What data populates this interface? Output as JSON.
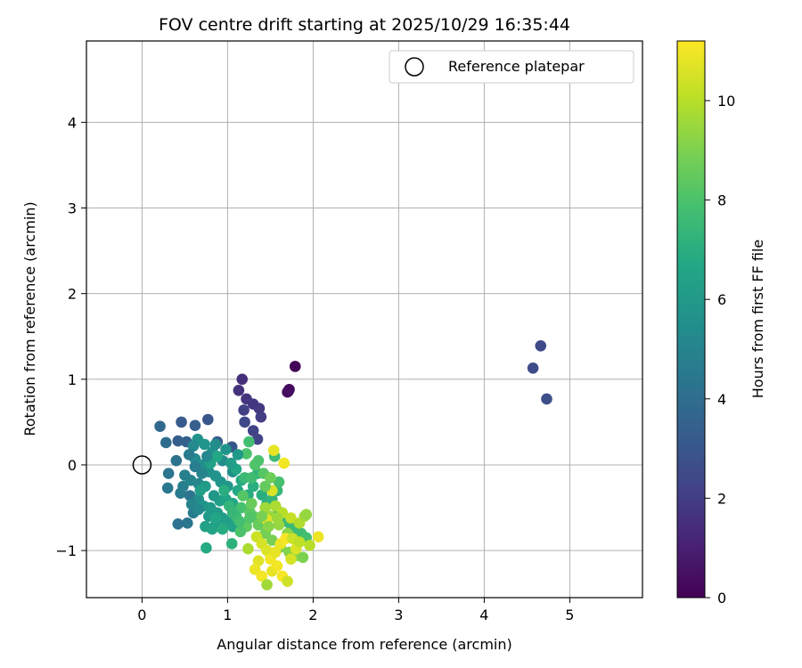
{
  "chart_data": {
    "type": "scatter",
    "title": "FOV centre drift starting at 2025/10/29 16:35:44",
    "xlabel": "Angular distance from reference (arcmin)",
    "ylabel": "Rotation from reference (arcmin)",
    "xlim": [
      -0.65,
      5.85
    ],
    "ylim": [
      -1.55,
      4.95
    ],
    "xticks": [
      0,
      1,
      2,
      3,
      4,
      5
    ],
    "yticks": [
      -1,
      0,
      1,
      2,
      3,
      4
    ],
    "xtick_labels": [
      "0",
      "1",
      "2",
      "3",
      "4",
      "5"
    ],
    "ytick_labels": [
      "−1",
      "0",
      "1",
      "2",
      "3",
      "4"
    ],
    "grid": true,
    "legend": {
      "position": "top-right",
      "entries": [
        "Reference platepar"
      ]
    },
    "reference_point": {
      "x": 0,
      "y": 0,
      "label": "Reference platepar"
    },
    "colorbar": {
      "label": "Hours from first FF file",
      "range": [
        0,
        11.2
      ],
      "ticks": [
        0,
        2,
        4,
        6,
        8,
        10
      ],
      "tick_labels": [
        "0",
        "2",
        "4",
        "6",
        "8",
        "10"
      ],
      "colormap": "viridis"
    },
    "points": [
      [
        1.79,
        1.15,
        0.1
      ],
      [
        1.71,
        0.86,
        0.2
      ],
      [
        1.72,
        0.88,
        0.3
      ],
      [
        1.7,
        0.85,
        0.4
      ],
      [
        1.17,
        1.0,
        1.5
      ],
      [
        1.13,
        0.87,
        1.6
      ],
      [
        1.22,
        0.77,
        1.7
      ],
      [
        1.3,
        0.71,
        1.8
      ],
      [
        1.37,
        0.66,
        1.9
      ],
      [
        1.39,
        0.56,
        2.0
      ],
      [
        1.19,
        0.64,
        2.1
      ],
      [
        1.3,
        0.4,
        2.2
      ],
      [
        1.35,
        0.3,
        2.3
      ],
      [
        1.2,
        0.5,
        2.4
      ],
      [
        4.66,
        1.39,
        2.5
      ],
      [
        4.57,
        1.13,
        2.6
      ],
      [
        4.73,
        0.77,
        2.7
      ],
      [
        0.77,
        0.53,
        3.0
      ],
      [
        0.46,
        0.5,
        3.2
      ],
      [
        0.62,
        0.46,
        3.4
      ],
      [
        0.42,
        0.28,
        3.3
      ],
      [
        0.52,
        0.27,
        3.5
      ],
      [
        0.88,
        0.27,
        3.2
      ],
      [
        1.05,
        0.21,
        3.0
      ],
      [
        0.21,
        0.45,
        3.8
      ],
      [
        0.28,
        0.26,
        4.0
      ],
      [
        0.4,
        0.05,
        4.2
      ],
      [
        0.31,
        -0.1,
        4.4
      ],
      [
        0.3,
        -0.27,
        4.5
      ],
      [
        0.45,
        -0.33,
        4.6
      ],
      [
        0.56,
        -0.36,
        4.3
      ],
      [
        0.53,
        -0.68,
        4.4
      ],
      [
        0.42,
        -0.69,
        4.2
      ],
      [
        0.6,
        -0.56,
        4.6
      ],
      [
        0.48,
        -0.25,
        4.8
      ],
      [
        0.57,
        -0.18,
        5.0
      ],
      [
        0.66,
        -0.22,
        5.1
      ],
      [
        0.62,
        0.07,
        5.3
      ],
      [
        0.7,
        0.0,
        5.5
      ],
      [
        0.78,
        -0.08,
        5.6
      ],
      [
        0.86,
        -0.13,
        5.7
      ],
      [
        0.92,
        -0.2,
        5.8
      ],
      [
        1.0,
        -0.25,
        5.9
      ],
      [
        1.06,
        -0.08,
        5.6
      ],
      [
        0.94,
        0.05,
        5.4
      ],
      [
        0.82,
        0.15,
        5.6
      ],
      [
        0.73,
        0.24,
        5.8
      ],
      [
        0.65,
        0.3,
        5.7
      ],
      [
        0.6,
        0.22,
        5.3
      ],
      [
        0.66,
        -0.4,
        5.5
      ],
      [
        0.72,
        -0.48,
        5.8
      ],
      [
        0.8,
        -0.5,
        6.0
      ],
      [
        0.88,
        -0.56,
        6.1
      ],
      [
        0.94,
        -0.62,
        6.2
      ],
      [
        1.0,
        -0.66,
        6.3
      ],
      [
        1.06,
        -0.72,
        6.4
      ],
      [
        0.86,
        -0.7,
        6.2
      ],
      [
        0.78,
        -0.6,
        6.0
      ],
      [
        0.74,
        -0.72,
        6.3
      ],
      [
        0.82,
        -0.75,
        6.5
      ],
      [
        0.91,
        -0.42,
        6.3
      ],
      [
        0.98,
        -0.4,
        6.5
      ],
      [
        1.06,
        -0.45,
        6.6
      ],
      [
        1.12,
        -0.3,
        6.7
      ],
      [
        1.16,
        -0.18,
        6.8
      ],
      [
        1.1,
        -0.05,
        6.6
      ],
      [
        0.88,
        0.1,
        6.7
      ],
      [
        0.8,
        0.02,
        6.4
      ],
      [
        0.74,
        -0.25,
        6.1
      ],
      [
        0.68,
        -0.3,
        6.2
      ],
      [
        1.24,
        -0.35,
        6.9
      ],
      [
        1.3,
        -0.25,
        7.0
      ],
      [
        1.35,
        -0.1,
        7.2
      ],
      [
        1.4,
        -0.35,
        7.0
      ],
      [
        1.46,
        -0.45,
        7.1
      ],
      [
        1.52,
        -0.4,
        7.3
      ],
      [
        1.58,
        -0.3,
        7.4
      ],
      [
        1.6,
        -0.55,
        7.2
      ],
      [
        1.66,
        -0.62,
        7.3
      ],
      [
        1.72,
        -0.68,
        7.5
      ],
      [
        1.8,
        -0.74,
        7.6
      ],
      [
        1.86,
        -0.8,
        7.7
      ],
      [
        1.92,
        -0.85,
        7.8
      ],
      [
        1.6,
        -0.2,
        7.9
      ],
      [
        1.55,
        0.1,
        7.6
      ],
      [
        1.25,
        0.27,
        7.8
      ],
      [
        1.22,
        0.13,
        8.0
      ],
      [
        1.32,
        0.0,
        8.1
      ],
      [
        1.42,
        -0.1,
        8.2
      ],
      [
        1.3,
        -0.6,
        8.3
      ],
      [
        1.22,
        -0.72,
        8.4
      ],
      [
        1.15,
        -0.78,
        8.0
      ],
      [
        1.05,
        -0.92,
        7.1
      ],
      [
        0.75,
        -0.97,
        6.8
      ],
      [
        1.16,
        -0.5,
        7.9
      ],
      [
        1.26,
        -0.55,
        8.3
      ],
      [
        1.36,
        -0.7,
        8.6
      ],
      [
        1.44,
        -0.8,
        8.8
      ],
      [
        1.52,
        -0.88,
        8.9
      ],
      [
        1.62,
        -0.96,
        9.0
      ],
      [
        1.72,
        -1.02,
        9.1
      ],
      [
        1.8,
        -1.06,
        9.2
      ],
      [
        1.88,
        -1.08,
        9.0
      ],
      [
        1.7,
        -0.8,
        9.3
      ],
      [
        1.6,
        -0.7,
        9.4
      ],
      [
        1.5,
        -0.6,
        9.5
      ],
      [
        1.44,
        -0.5,
        9.6
      ],
      [
        1.56,
        -0.48,
        9.8
      ],
      [
        1.64,
        -0.56,
        10.0
      ],
      [
        1.74,
        -0.62,
        10.2
      ],
      [
        1.84,
        -0.68,
        9.9
      ],
      [
        1.9,
        -0.6,
        9.7
      ],
      [
        1.34,
        -0.84,
        10.3
      ],
      [
        1.4,
        -0.92,
        10.5
      ],
      [
        1.46,
        -1.0,
        10.6
      ],
      [
        1.36,
        -1.12,
        10.7
      ],
      [
        1.32,
        -1.22,
        10.9
      ],
      [
        1.4,
        -1.3,
        11.0
      ],
      [
        1.46,
        -1.4,
        9.6
      ],
      [
        1.52,
        -1.24,
        10.8
      ],
      [
        1.58,
        -1.18,
        11.0
      ],
      [
        1.64,
        -1.3,
        11.1
      ],
      [
        1.7,
        -1.36,
        10.4
      ],
      [
        1.5,
        -1.1,
        11.0
      ],
      [
        1.56,
        -1.02,
        10.8
      ],
      [
        1.62,
        -0.92,
        10.9
      ],
      [
        1.68,
        -0.86,
        11.1
      ],
      [
        1.74,
        -1.1,
        10.5
      ],
      [
        1.8,
        -0.98,
        10.6
      ],
      [
        1.66,
        0.02,
        11.0
      ],
      [
        1.54,
        0.17,
        10.8
      ],
      [
        1.52,
        -0.3,
        10.6
      ],
      [
        1.46,
        -0.64,
        10.7
      ],
      [
        2.06,
        -0.84,
        10.9
      ],
      [
        1.96,
        -0.94,
        10.0
      ],
      [
        1.92,
        -0.58,
        9.4
      ],
      [
        1.28,
        -0.45,
        8.6
      ],
      [
        1.18,
        -0.36,
        8.2
      ],
      [
        1.1,
        -0.6,
        7.6
      ],
      [
        1.02,
        -0.48,
        7.3
      ],
      [
        0.96,
        -0.3,
        7.0
      ],
      [
        1.04,
        0.02,
        6.2
      ],
      [
        1.12,
        0.12,
        6.0
      ],
      [
        0.98,
        0.18,
        5.8
      ],
      [
        0.86,
        0.24,
        5.4
      ],
      [
        0.76,
        0.1,
        5.2
      ],
      [
        0.7,
        -0.1,
        5.0
      ],
      [
        0.62,
        -0.02,
        4.7
      ],
      [
        0.55,
        0.12,
        4.6
      ],
      [
        0.5,
        -0.12,
        4.9
      ],
      [
        0.58,
        -0.46,
        5.0
      ],
      [
        0.66,
        -0.52,
        5.2
      ],
      [
        0.84,
        -0.36,
        5.9
      ],
      [
        1.2,
        -0.15,
        7.5
      ],
      [
        1.28,
        -0.15,
        7.7
      ],
      [
        1.36,
        0.05,
        8.0
      ],
      [
        1.26,
        -0.62,
        8.1
      ],
      [
        1.14,
        -0.66,
        7.8
      ],
      [
        1.06,
        -0.56,
        7.4
      ],
      [
        0.94,
        -0.75,
        6.9
      ],
      [
        0.86,
        -0.62,
        6.6
      ],
      [
        1.44,
        -0.25,
        8.5
      ],
      [
        1.5,
        -0.15,
        8.7
      ],
      [
        1.58,
        -0.62,
        9.5
      ],
      [
        1.48,
        -0.72,
        9.2
      ],
      [
        1.4,
        -0.6,
        8.9
      ],
      [
        1.76,
        -0.86,
        10.3
      ],
      [
        1.84,
        -0.9,
        10.1
      ],
      [
        1.24,
        -0.98,
        9.8
      ]
    ]
  }
}
